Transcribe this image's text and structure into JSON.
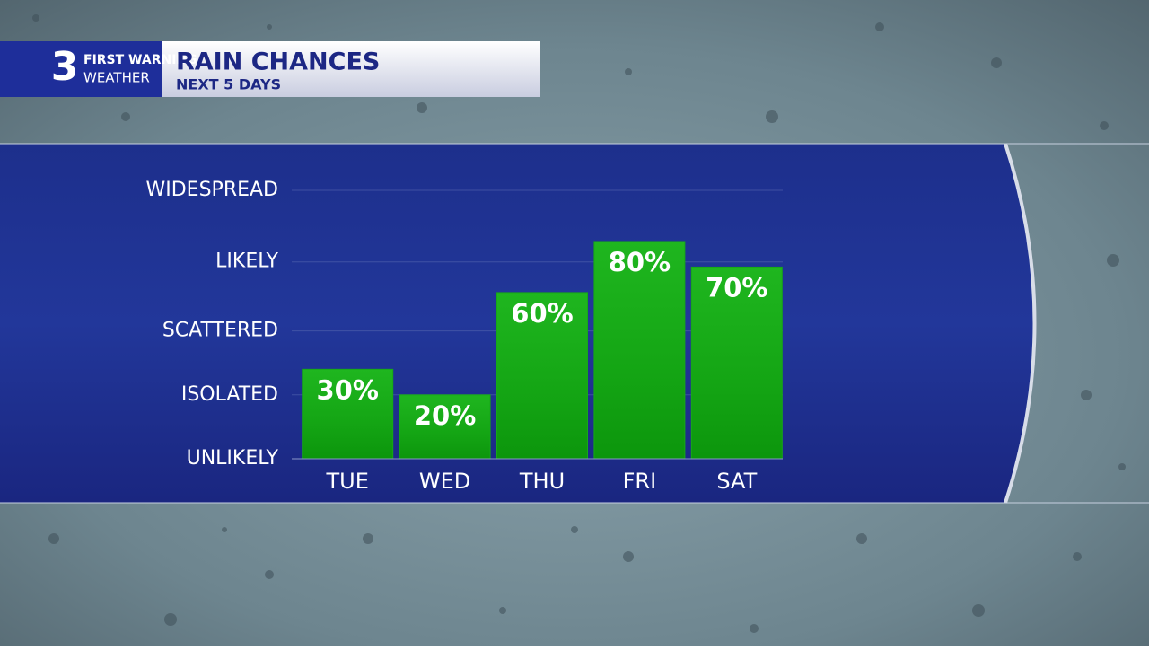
{
  "branding": {
    "number": "3",
    "line1": "FIRST WARNING",
    "line2": "WEATHER"
  },
  "chart_data": {
    "type": "bar",
    "title": "RAIN CHANCES",
    "subtitle": "NEXT 5 DAYS",
    "categories": [
      "TUE",
      "WED",
      "THU",
      "FRI",
      "SAT"
    ],
    "values": [
      30,
      20,
      60,
      80,
      70
    ],
    "value_labels": [
      "30%",
      "20%",
      "60%",
      "80%",
      "70%"
    ],
    "color": "#17a817",
    "ylim": [
      -5,
      100
    ],
    "yticks": [
      {
        "value": -5,
        "label": "UNLIKELY"
      },
      {
        "value": 20,
        "label": "ISOLATED"
      },
      {
        "value": 45,
        "label": "SCATTERED"
      },
      {
        "value": 72,
        "label": "LIKELY"
      },
      {
        "value": 100,
        "label": "WIDESPREAD"
      }
    ],
    "grid": true
  }
}
